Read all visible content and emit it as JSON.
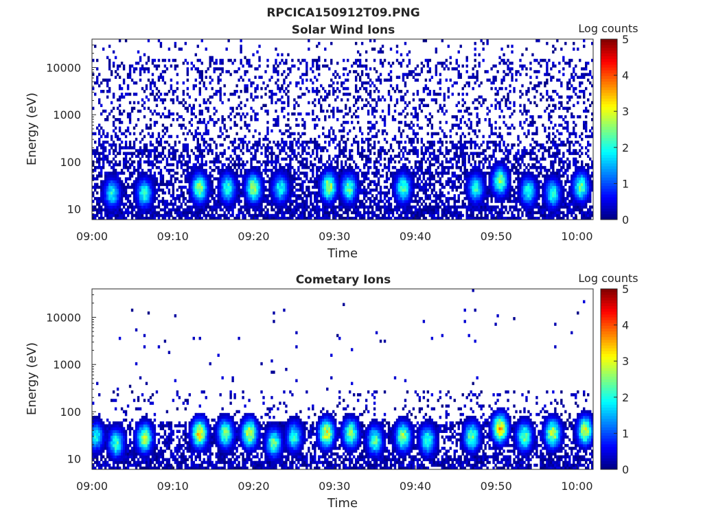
{
  "figure_title": "RPCICA150912T09.PNG",
  "chart_data": [
    {
      "type": "heatmap",
      "title": "Solar Wind Ions",
      "xlabel": "Time",
      "ylabel": "Energy (eV)",
      "xlim": [
        "09:00",
        "10:02"
      ],
      "ylim": [
        6,
        40000
      ],
      "y_scale": "log",
      "x_ticks": [
        "09:00",
        "09:10",
        "09:20",
        "09:30",
        "09:40",
        "09:50",
        "10:00"
      ],
      "y_ticks": [
        "10",
        "100",
        "1000",
        "10000"
      ],
      "colorbar": {
        "label": "Log counts",
        "range": [
          0,
          5
        ],
        "ticks": [
          "0",
          "1",
          "2",
          "3",
          "4",
          "5"
        ],
        "colormap": "jet"
      },
      "background_level": 0.5,
      "sparsity_top": 0.25,
      "bursts": [
        {
          "time_min": 2.5,
          "energy_ev": 22,
          "log_counts": 2.3
        },
        {
          "time_min": 6.5,
          "energy_ev": 22,
          "log_counts": 2.5
        },
        {
          "time_min": 13.3,
          "energy_ev": 28,
          "log_counts": 3.1
        },
        {
          "time_min": 16.8,
          "energy_ev": 28,
          "log_counts": 2.6
        },
        {
          "time_min": 20.0,
          "energy_ev": 28,
          "log_counts": 3.2
        },
        {
          "time_min": 23.3,
          "energy_ev": 28,
          "log_counts": 2.3
        },
        {
          "time_min": 29.3,
          "energy_ev": 30,
          "log_counts": 3.3
        },
        {
          "time_min": 31.8,
          "energy_ev": 28,
          "log_counts": 2.7
        },
        {
          "time_min": 38.5,
          "energy_ev": 28,
          "log_counts": 2.7
        },
        {
          "time_min": 47.5,
          "energy_ev": 28,
          "log_counts": 2.4
        },
        {
          "time_min": 50.5,
          "energy_ev": 40,
          "log_counts": 3.0
        },
        {
          "time_min": 54.0,
          "energy_ev": 24,
          "log_counts": 2.4
        },
        {
          "time_min": 57.0,
          "energy_ev": 22,
          "log_counts": 2.4
        },
        {
          "time_min": 60.5,
          "energy_ev": 30,
          "log_counts": 2.8
        }
      ]
    },
    {
      "type": "heatmap",
      "title": "Cometary Ions",
      "xlabel": "Time",
      "ylabel": "Energy (eV)",
      "xlim": [
        "09:00",
        "10:02"
      ],
      "ylim": [
        6,
        40000
      ],
      "y_scale": "log",
      "x_ticks": [
        "09:00",
        "09:10",
        "09:20",
        "09:30",
        "09:40",
        "09:50",
        "10:00"
      ],
      "y_ticks": [
        "10",
        "100",
        "1000",
        "10000"
      ],
      "colorbar": {
        "label": "Log counts",
        "range": [
          0,
          5
        ],
        "ticks": [
          "0",
          "1",
          "2",
          "3",
          "4",
          "5"
        ],
        "colormap": "jet"
      },
      "background_level": 0.5,
      "sparsity_top": 0.01,
      "bursts": [
        {
          "time_min": 0.5,
          "energy_ev": 30,
          "log_counts": 2.2
        },
        {
          "time_min": 3.0,
          "energy_ev": 22,
          "log_counts": 2.6
        },
        {
          "time_min": 6.5,
          "energy_ev": 28,
          "log_counts": 3.2
        },
        {
          "time_min": 13.3,
          "energy_ev": 35,
          "log_counts": 3.8
        },
        {
          "time_min": 16.5,
          "energy_ev": 35,
          "log_counts": 3.0
        },
        {
          "time_min": 19.5,
          "energy_ev": 35,
          "log_counts": 3.5
        },
        {
          "time_min": 22.5,
          "energy_ev": 22,
          "log_counts": 2.8
        },
        {
          "time_min": 25.0,
          "energy_ev": 30,
          "log_counts": 2.4
        },
        {
          "time_min": 29.0,
          "energy_ev": 35,
          "log_counts": 3.6
        },
        {
          "time_min": 32.0,
          "energy_ev": 35,
          "log_counts": 3.0
        },
        {
          "time_min": 35.0,
          "energy_ev": 25,
          "log_counts": 2.7
        },
        {
          "time_min": 38.5,
          "energy_ev": 30,
          "log_counts": 3.1
        },
        {
          "time_min": 41.5,
          "energy_ev": 25,
          "log_counts": 2.6
        },
        {
          "time_min": 47.0,
          "energy_ev": 30,
          "log_counts": 2.9
        },
        {
          "time_min": 50.5,
          "energy_ev": 45,
          "log_counts": 4.0
        },
        {
          "time_min": 53.5,
          "energy_ev": 30,
          "log_counts": 2.9
        },
        {
          "time_min": 57.0,
          "energy_ev": 35,
          "log_counts": 3.4
        },
        {
          "time_min": 61.0,
          "energy_ev": 40,
          "log_counts": 3.4
        }
      ]
    }
  ]
}
